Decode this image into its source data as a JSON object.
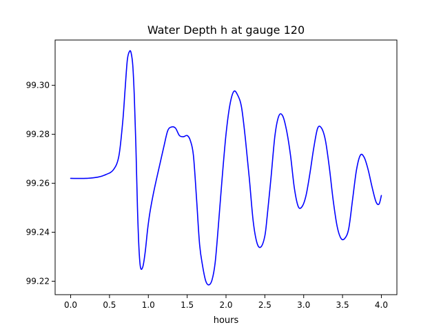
{
  "chart_data": {
    "type": "line",
    "title": "Water Depth h at gauge 120",
    "xlabel": "hours",
    "ylabel": "",
    "xlim": [
      -0.2,
      4.2
    ],
    "ylim": [
      99.2145,
      99.3185
    ],
    "xticks": [
      0.0,
      0.5,
      1.0,
      1.5,
      2.0,
      2.5,
      3.0,
      3.5,
      4.0
    ],
    "xtick_labels": [
      "0.0",
      "0.5",
      "1.0",
      "1.5",
      "2.0",
      "2.5",
      "3.0",
      "3.5",
      "4.0"
    ],
    "yticks": [
      99.22,
      99.24,
      99.26,
      99.28,
      99.3
    ],
    "ytick_labels": [
      "99.22",
      "99.24",
      "99.26",
      "99.28",
      "99.30"
    ],
    "grid": false,
    "legend": "none",
    "series": [
      {
        "color": "#0000ff",
        "x": [
          0.0,
          0.2,
          0.35,
          0.45,
          0.55,
          0.62,
          0.67,
          0.7,
          0.73,
          0.76,
          0.78,
          0.8,
          0.82,
          0.84,
          0.86,
          0.88,
          0.9,
          0.93,
          0.96,
          0.99,
          1.02,
          1.06,
          1.1,
          1.15,
          1.2,
          1.25,
          1.3,
          1.35,
          1.4,
          1.45,
          1.5,
          1.54,
          1.58,
          1.62,
          1.66,
          1.7,
          1.74,
          1.78,
          1.82,
          1.86,
          1.9,
          1.95,
          2.0,
          2.05,
          2.1,
          2.15,
          2.2,
          2.25,
          2.3,
          2.35,
          2.4,
          2.45,
          2.5,
          2.53,
          2.58,
          2.63,
          2.68,
          2.73,
          2.78,
          2.83,
          2.88,
          2.93,
          2.98,
          3.03,
          3.08,
          3.13,
          3.18,
          3.23,
          3.28,
          3.33,
          3.38,
          3.43,
          3.48,
          3.53,
          3.58,
          3.63,
          3.68,
          3.73,
          3.78,
          3.83,
          3.88,
          3.93,
          3.97,
          4.0
        ],
        "y": [
          99.262,
          99.262,
          99.2625,
          99.2635,
          99.2655,
          99.271,
          99.285,
          99.298,
          99.3105,
          99.314,
          99.313,
          99.308,
          99.295,
          99.275,
          99.25,
          99.233,
          99.2255,
          99.226,
          99.232,
          99.241,
          99.248,
          99.255,
          99.261,
          99.268,
          99.275,
          99.2815,
          99.283,
          99.2825,
          99.2795,
          99.279,
          99.2795,
          99.2775,
          99.2715,
          99.254,
          99.235,
          99.226,
          99.22,
          99.2185,
          99.2205,
          99.2275,
          99.242,
          99.262,
          99.28,
          99.292,
          99.2975,
          99.296,
          99.291,
          99.278,
          99.262,
          99.2445,
          99.2355,
          99.234,
          99.2385,
          99.2465,
          99.2625,
          99.2795,
          99.2875,
          99.2875,
          99.2815,
          99.2715,
          99.258,
          99.2505,
          99.2505,
          99.255,
          99.264,
          99.2745,
          99.2825,
          99.2825,
          99.2775,
          99.2665,
          99.253,
          99.2425,
          99.2375,
          99.2375,
          99.2415,
          99.2535,
          99.2655,
          99.2715,
          99.2705,
          99.2655,
          99.2585,
          99.2525,
          99.2515,
          99.255
        ]
      }
    ]
  }
}
